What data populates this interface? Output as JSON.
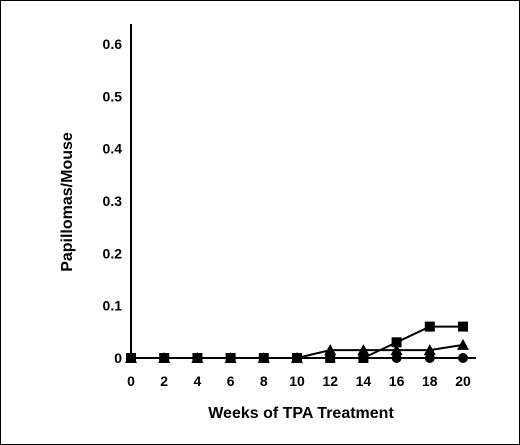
{
  "chart_data": {
    "type": "line",
    "title": "",
    "xlabel": "Weeks of TPA Treatment",
    "ylabel": "Papillomas/Mouse",
    "x": [
      0,
      2,
      4,
      6,
      8,
      10,
      12,
      14,
      16,
      18,
      20
    ],
    "xlim": [
      0,
      20
    ],
    "ylim": [
      0,
      0.6
    ],
    "x_ticks": [
      "0",
      "2",
      "4",
      "6",
      "8",
      "10",
      "12",
      "14",
      "16",
      "18",
      "20"
    ],
    "y_ticks": [
      "0",
      "0.1",
      "0.2",
      "0.3",
      "0.4",
      "0.5",
      "0.6"
    ],
    "y_tick_values": [
      0,
      0.1,
      0.2,
      0.3,
      0.4,
      0.5,
      0.6
    ],
    "grid": false,
    "legend": "none",
    "series": [
      {
        "marker": "square",
        "color": "#000000",
        "values": [
          0,
          0,
          0,
          0,
          0,
          0,
          0,
          0,
          0.03,
          0.06,
          0.06
        ]
      },
      {
        "marker": "triangle",
        "color": "#000000",
        "values": [
          0,
          0,
          0,
          0,
          0,
          0,
          0.015,
          0.015,
          0.015,
          0.015,
          0.025
        ]
      },
      {
        "marker": "circle",
        "color": "#000000",
        "values": [
          0,
          0,
          0,
          0,
          0,
          0,
          0,
          0,
          0,
          0,
          0
        ]
      }
    ]
  }
}
